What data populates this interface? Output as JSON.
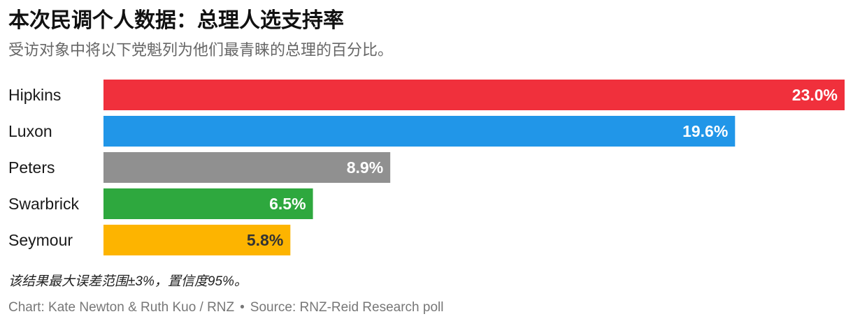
{
  "chart_data": {
    "type": "bar",
    "orientation": "horizontal",
    "title": "本次民调个人数据：总理人选支持率",
    "subtitle": "受访对象中将以下党魁列为他们最青睐的总理的百分比。",
    "categories": [
      "Hipkins",
      "Luxon",
      "Peters",
      "Swarbrick",
      "Seymour"
    ],
    "values": [
      23.0,
      19.6,
      8.9,
      6.5,
      5.8
    ],
    "labels": [
      "23.0%",
      "19.6%",
      "8.9%",
      "6.5%",
      "5.8%"
    ],
    "colors": [
      "#f0303c",
      "#2196e8",
      "#909090",
      "#2ea83e",
      "#fdb400"
    ],
    "label_colors": [
      "#ffffff",
      "#ffffff",
      "#ffffff",
      "#ffffff",
      "#333333"
    ],
    "xlim": [
      0,
      23.0
    ],
    "grid": false,
    "legend": "none"
  },
  "footer": {
    "note": "该结果最大误差范围±3%，置信度95%。",
    "credit": "Chart: Kate Newton & Ruth Kuo / RNZ",
    "separator": "•",
    "source": "Source: RNZ-Reid Research poll"
  }
}
